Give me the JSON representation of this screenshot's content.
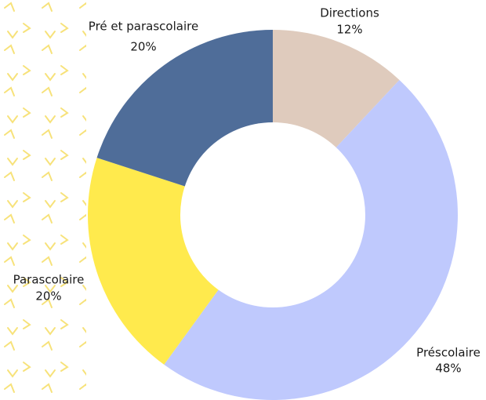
{
  "chart_data": {
    "type": "donut",
    "categories": [
      "Directions",
      "Préscolaire",
      "Parascolaire",
      "Pré et parascolaire"
    ],
    "values": [
      12,
      48,
      20,
      20
    ],
    "value_labels": [
      "12%",
      "48%",
      "20%",
      "20%"
    ],
    "colors": [
      "#dfcbbd",
      "#bfc9fd",
      "#ffea4d",
      "#4f6d99"
    ]
  }
}
